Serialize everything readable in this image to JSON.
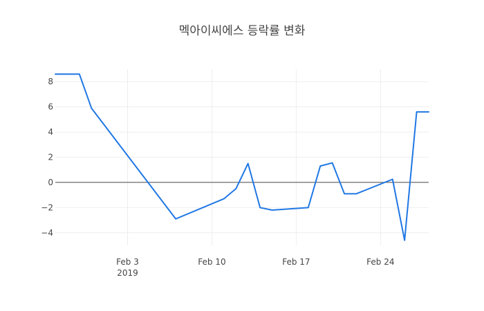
{
  "chart_data": {
    "type": "line",
    "title": "멕아이씨에스 등락률 변화",
    "x_type": "date",
    "x": [
      "2019-01-28",
      "2019-01-29",
      "2019-01-30",
      "2019-01-31",
      "2019-02-07",
      "2019-02-11",
      "2019-02-12",
      "2019-02-13",
      "2019-02-14",
      "2019-02-15",
      "2019-02-18",
      "2019-02-19",
      "2019-02-20",
      "2019-02-21",
      "2019-02-22",
      "2019-02-25",
      "2019-02-26",
      "2019-02-27",
      "2019-02-28"
    ],
    "series": [
      {
        "color": "#1f77e4",
        "values": [
          8.6,
          8.6,
          8.6,
          5.9,
          -2.9,
          -1.3,
          -0.5,
          1.5,
          -2.0,
          -2.2,
          -2.0,
          1.3,
          1.55,
          -0.9,
          -0.9,
          0.25,
          -4.6,
          5.6,
          5.6
        ]
      }
    ],
    "xlim": [
      "2019-01-28",
      "2019-02-28"
    ],
    "ylim": [
      -5,
      9
    ],
    "x_ticks": [
      {
        "date": "2019-02-03",
        "label": "Feb 3",
        "sublabel": "2019"
      },
      {
        "date": "2019-02-10",
        "label": "Feb 10",
        "sublabel": ""
      },
      {
        "date": "2019-02-17",
        "label": "Feb 17",
        "sublabel": ""
      },
      {
        "date": "2019-02-24",
        "label": "Feb 24",
        "sublabel": ""
      }
    ],
    "y_ticks": [
      8,
      6,
      4,
      2,
      0,
      -2,
      -4
    ],
    "grid": true,
    "legend": "none"
  }
}
